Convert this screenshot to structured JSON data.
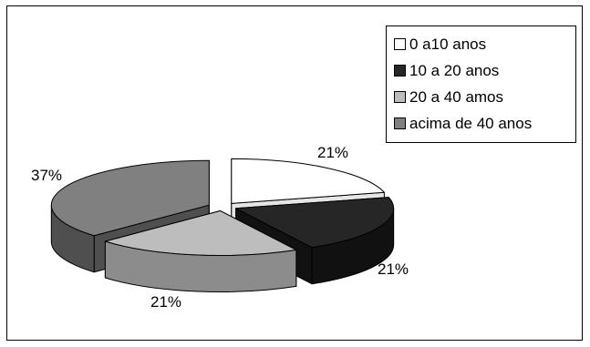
{
  "chart_data": {
    "type": "pie",
    "title": "",
    "categories": [
      "0 a10 anos",
      "10 a 20 anos",
      "20 a 40 amos",
      "acima de 40 anos"
    ],
    "values": [
      21,
      21,
      21,
      37
    ],
    "labels": [
      "21%",
      "21%",
      "21%",
      "37%"
    ],
    "colors": [
      "#ffffff",
      "#262626",
      "#bdbdbd",
      "#808080"
    ],
    "side_colors": [
      "#e6e6e6",
      "#111111",
      "#8c8c8c",
      "#4f4f4f"
    ],
    "style": "3d-exploded",
    "legend_position": "top-right"
  }
}
